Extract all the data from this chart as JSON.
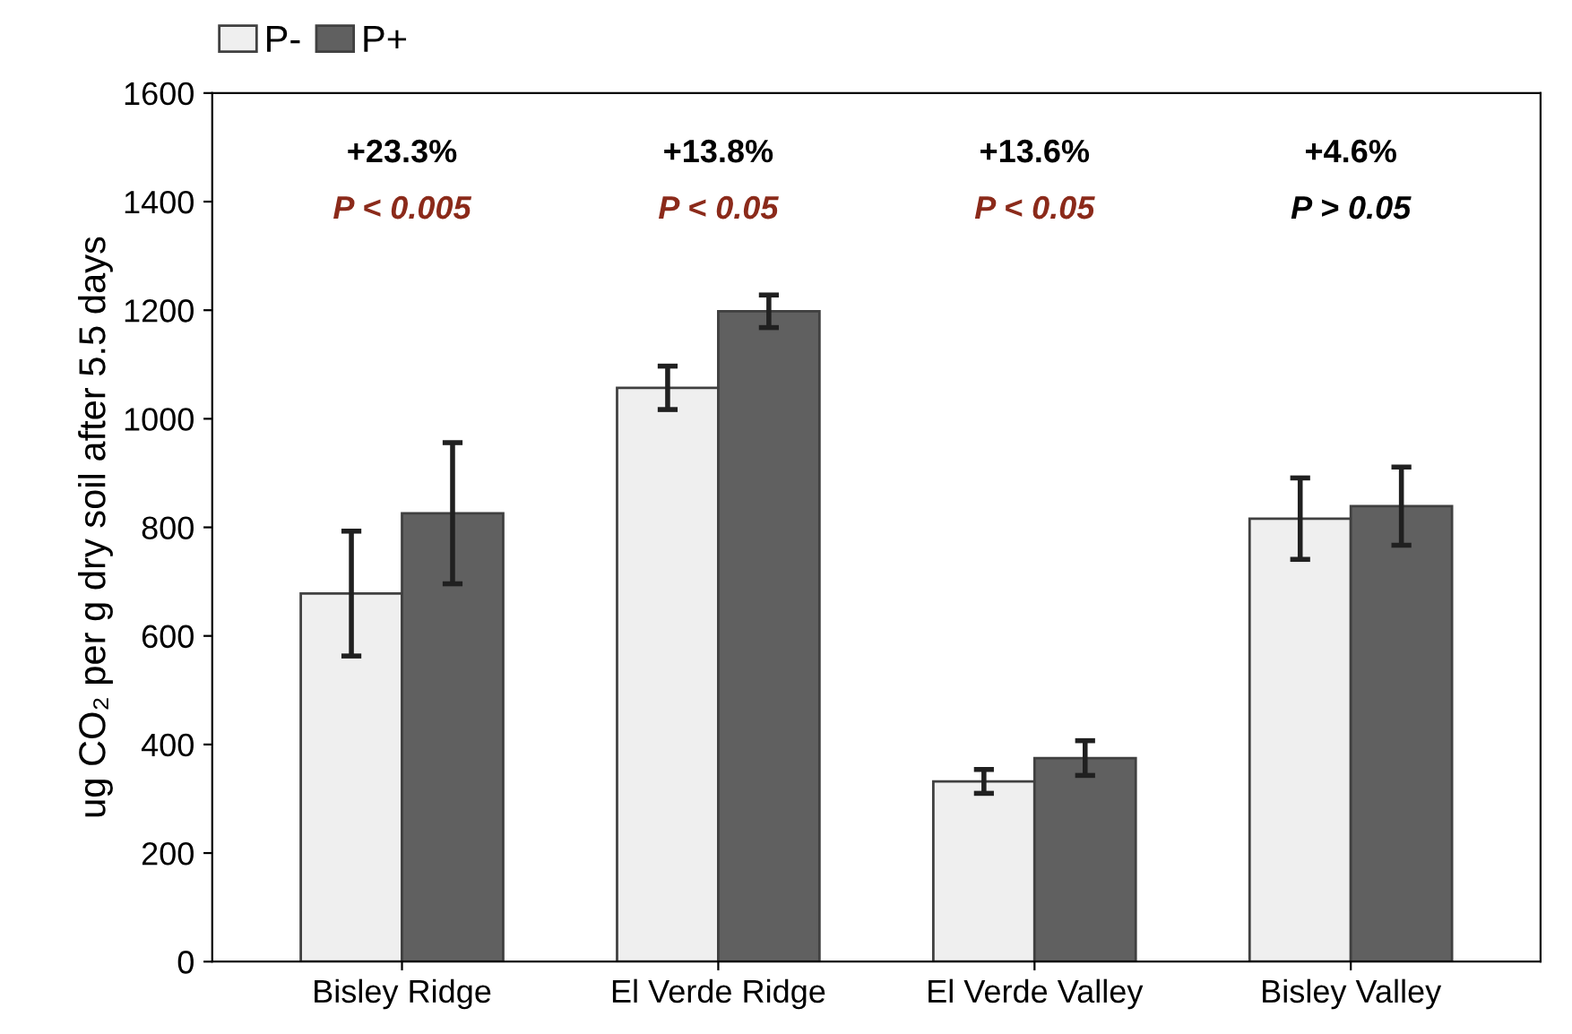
{
  "chart_data": {
    "type": "bar",
    "ylabel": "ug CO₂ per g dry soil after 5.5 days",
    "categories": [
      "Bisley Ridge",
      "El Verde Ridge",
      "El Verde Valley",
      "Bisley Valley"
    ],
    "series": [
      {
        "name": "P-",
        "color": "#efefef",
        "values": [
          678,
          1057,
          332,
          816
        ],
        "errors": [
          115,
          40,
          22,
          75
        ]
      },
      {
        "name": "P+",
        "color": "#606060",
        "values": [
          826,
          1198,
          375,
          839
        ],
        "errors": [
          130,
          30,
          32,
          72
        ]
      }
    ],
    "ylim": [
      0,
      1600
    ],
    "yticks": [
      0,
      200,
      400,
      600,
      800,
      1000,
      1200,
      1400,
      1600
    ],
    "grid": false,
    "legend": "top left",
    "annotations": [
      "+23.3%",
      "P < 0.005",
      "+13.8%",
      "P < 0.05",
      "+13.6%",
      "P < 0.05",
      "+4.6%",
      "P > 0.05"
    ]
  }
}
